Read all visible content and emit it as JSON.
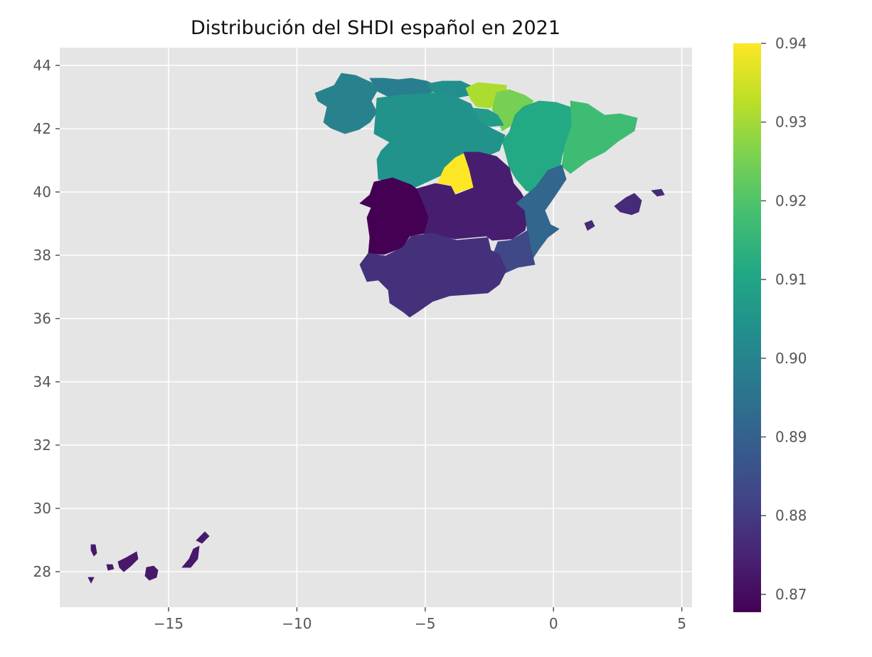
{
  "title": "Distribución del SHDI español en 2021",
  "axes": {
    "xticks": [
      "−15",
      "−10",
      "−5",
      "0",
      "5"
    ],
    "yticks": [
      "44",
      "42",
      "40",
      "38",
      "36",
      "34",
      "32",
      "30",
      "28"
    ],
    "background": "#e5e5e5",
    "grid": "on"
  },
  "colorbar": {
    "ticks": [
      "0.94",
      "0.93",
      "0.92",
      "0.91",
      "0.90",
      "0.89",
      "0.88",
      "0.87"
    ],
    "colormap": "viridis",
    "min": 0.867,
    "max": 0.94
  },
  "chart_data": {
    "type": "choropleth",
    "title": "Distribución del SHDI español en 2021",
    "xlim": [
      -19.2,
      5.4
    ],
    "ylim": [
      26.8,
      44.6
    ],
    "regions": [
      {
        "region": "Galicia",
        "value": 0.899
      },
      {
        "region": "Principado de Asturias",
        "value": 0.898
      },
      {
        "region": "Cantabria",
        "value": 0.903
      },
      {
        "region": "País Vasco",
        "value": 0.931
      },
      {
        "region": "Comunidad Foral de Navarra",
        "value": 0.925
      },
      {
        "region": "La Rioja",
        "value": 0.907
      },
      {
        "region": "Aragón",
        "value": 0.911
      },
      {
        "region": "Cataluña",
        "value": 0.917
      },
      {
        "region": "Castilla y León",
        "value": 0.904
      },
      {
        "region": "Comunidad de Madrid",
        "value": 0.94
      },
      {
        "region": "Castilla-La Mancha",
        "value": 0.873
      },
      {
        "region": "Extremadura",
        "value": 0.867
      },
      {
        "region": "Comunitat Valenciana",
        "value": 0.891
      },
      {
        "region": "Región de Murcia",
        "value": 0.883
      },
      {
        "region": "Andalucía",
        "value": 0.877
      },
      {
        "region": "Illes Balears",
        "value": 0.876
      },
      {
        "region": "Canarias",
        "value": 0.872
      }
    ]
  }
}
